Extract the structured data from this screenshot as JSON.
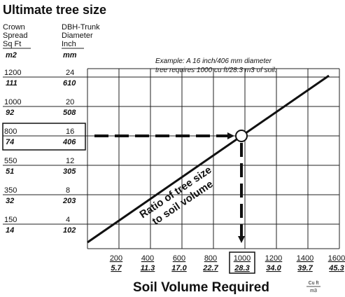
{
  "title": "Ultimate tree size",
  "headers": {
    "crown": [
      "Crown",
      "Spread",
      "Sq Ft"
    ],
    "dbh": [
      "DBH-Trunk",
      "Diameter",
      "Inch"
    ],
    "crown_unit": "m2",
    "dbh_unit": "mm"
  },
  "example": [
    "Example: A 16 inch/406 mm diameter",
    "tree requires 1000 cu ft/28.3 m3 of soil."
  ],
  "rows": [
    {
      "sqft": "1200",
      "m2": "111",
      "inch": "24",
      "mm": "610"
    },
    {
      "sqft": "1000",
      "m2": "92",
      "inch": "20",
      "mm": "508"
    },
    {
      "sqft": "800",
      "m2": "74",
      "inch": "16",
      "mm": "406"
    },
    {
      "sqft": "550",
      "m2": "51",
      "inch": "12",
      "mm": "305"
    },
    {
      "sqft": "350",
      "m2": "32",
      "inch": "8",
      "mm": "203"
    },
    {
      "sqft": "150",
      "m2": "14",
      "inch": "4",
      "mm": "102"
    }
  ],
  "x_axis": {
    "title": "Soil Volume Required",
    "unit_top": "Cu ft",
    "unit_bottom": "m3",
    "ticks": [
      {
        "cuft": "200",
        "m3": "5.7"
      },
      {
        "cuft": "400",
        "m3": "11.3"
      },
      {
        "cuft": "600",
        "m3": "17.0"
      },
      {
        "cuft": "800",
        "m3": "22.7"
      },
      {
        "cuft": "1000",
        "m3": "28.3"
      },
      {
        "cuft": "1200",
        "m3": "34.0"
      },
      {
        "cuft": "1400",
        "m3": "39.7"
      },
      {
        "cuft": "1600",
        "m3": "45.3"
      }
    ]
  },
  "line_label": [
    "Ratio of tree size",
    "to soil volume"
  ]
}
